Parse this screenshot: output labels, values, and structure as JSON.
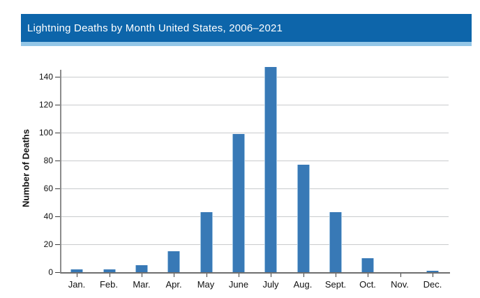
{
  "header": {
    "title": "Lightning Deaths by Month United States, 2006–2021"
  },
  "colors": {
    "header_bg": "#0d65aa",
    "header_accent": "#93c6e7",
    "bar_fill": "#3879b6",
    "bar_edge": "#9fc4e2",
    "gridline": "#c9cbcd",
    "axis_line": "#6e6e6e"
  },
  "chart_data": {
    "type": "bar",
    "title": "Lightning Deaths by Month United States, 2006–2021",
    "categories": [
      "Jan.",
      "Feb.",
      "Mar.",
      "Apr.",
      "May",
      "June",
      "July",
      "Aug.",
      "Sept.",
      "Oct.",
      "Nov.",
      "Dec."
    ],
    "values": [
      2,
      2,
      5,
      15,
      43,
      99,
      147,
      77,
      43,
      10,
      0,
      1
    ],
    "xlabel": "",
    "ylabel": "Number of Deaths",
    "ylim": [
      0,
      150
    ],
    "yticks": [
      0,
      20,
      40,
      60,
      80,
      100,
      120,
      140
    ],
    "grid": true,
    "legend": "none"
  }
}
